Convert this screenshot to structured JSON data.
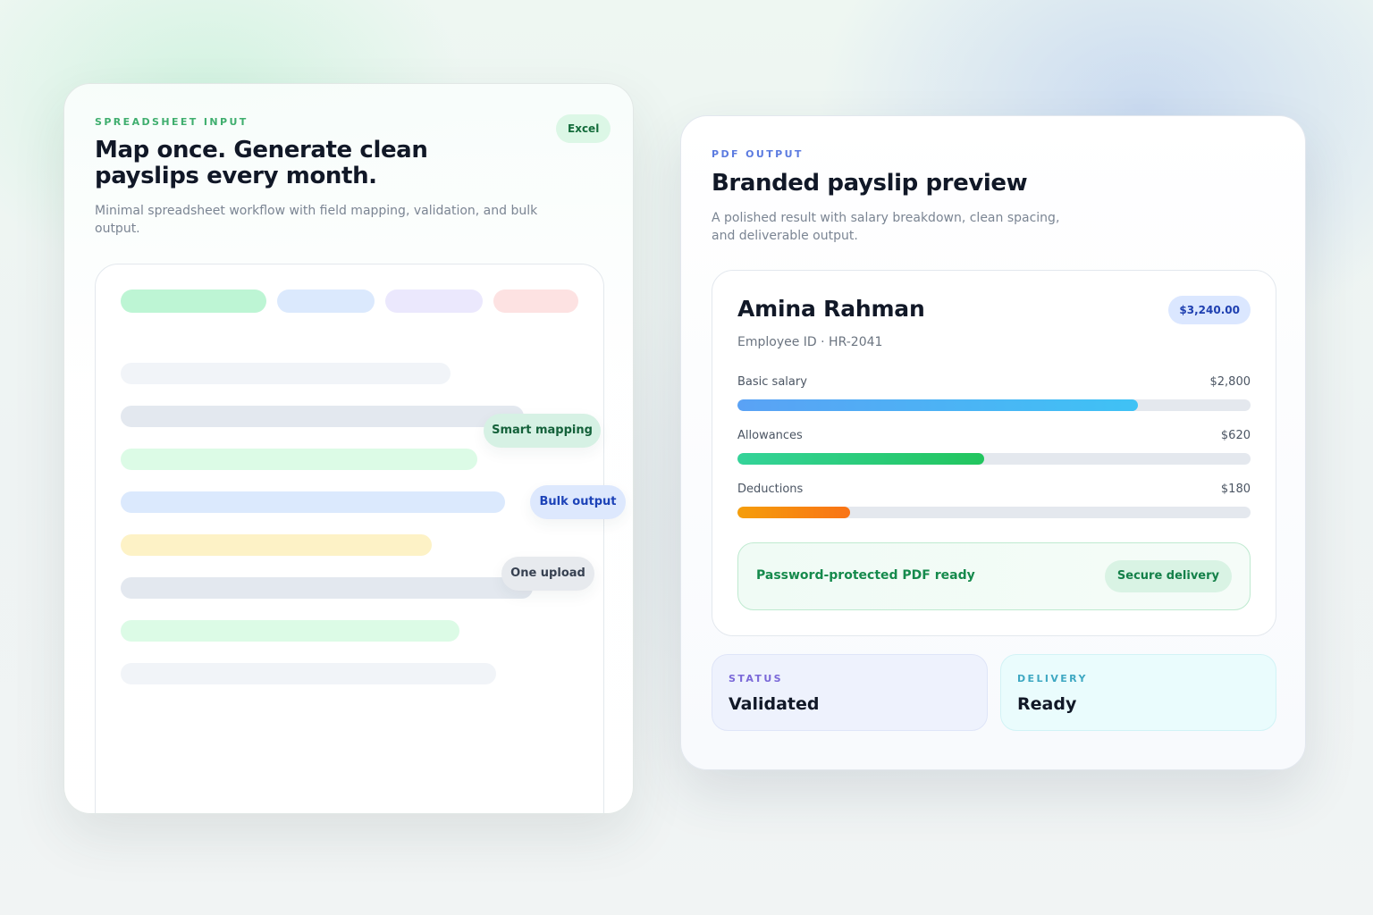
{
  "left": {
    "eyebrow": "SPREADSHEET INPUT",
    "badge": "Excel",
    "title": "Map once. Generate clean payslips every month.",
    "subtitle": "Minimal spreadsheet workflow with field mapping, validation, and bulk output.",
    "chips": {
      "smart_mapping": "Smart mapping",
      "bulk_output": "Bulk output",
      "one_upload": "One upload"
    }
  },
  "right": {
    "eyebrow": "PDF OUTPUT",
    "title": "Branded payslip preview",
    "subtitle": "A polished result with salary breakdown, clean spacing, and deliverable output.",
    "payslip": {
      "name": "Amina Rahman",
      "total": "$3,240.00",
      "employee_id": "Employee ID · HR-2041",
      "rows": [
        {
          "label": "Basic salary",
          "value": "$2,800",
          "fraction": 0.78
        },
        {
          "label": "Allowances",
          "value": "$620",
          "fraction": 0.48
        },
        {
          "label": "Deductions",
          "value": "$180",
          "fraction": 0.22
        }
      ],
      "ready_text": "Password-protected PDF ready",
      "secure_chip": "Secure delivery"
    },
    "status": {
      "label": "STATUS",
      "value": "Validated"
    },
    "delivery": {
      "label": "DELIVERY",
      "value": "Ready"
    }
  },
  "colors": {
    "green_accent": "#3fae6e",
    "blue_accent": "#5b7be0",
    "salary_bar": [
      "#5aa2f5",
      "#3fc2f5"
    ],
    "allowance_bar": [
      "#34d399",
      "#22c55e"
    ],
    "deduction_bar": [
      "#f59e0b",
      "#f97316"
    ]
  }
}
